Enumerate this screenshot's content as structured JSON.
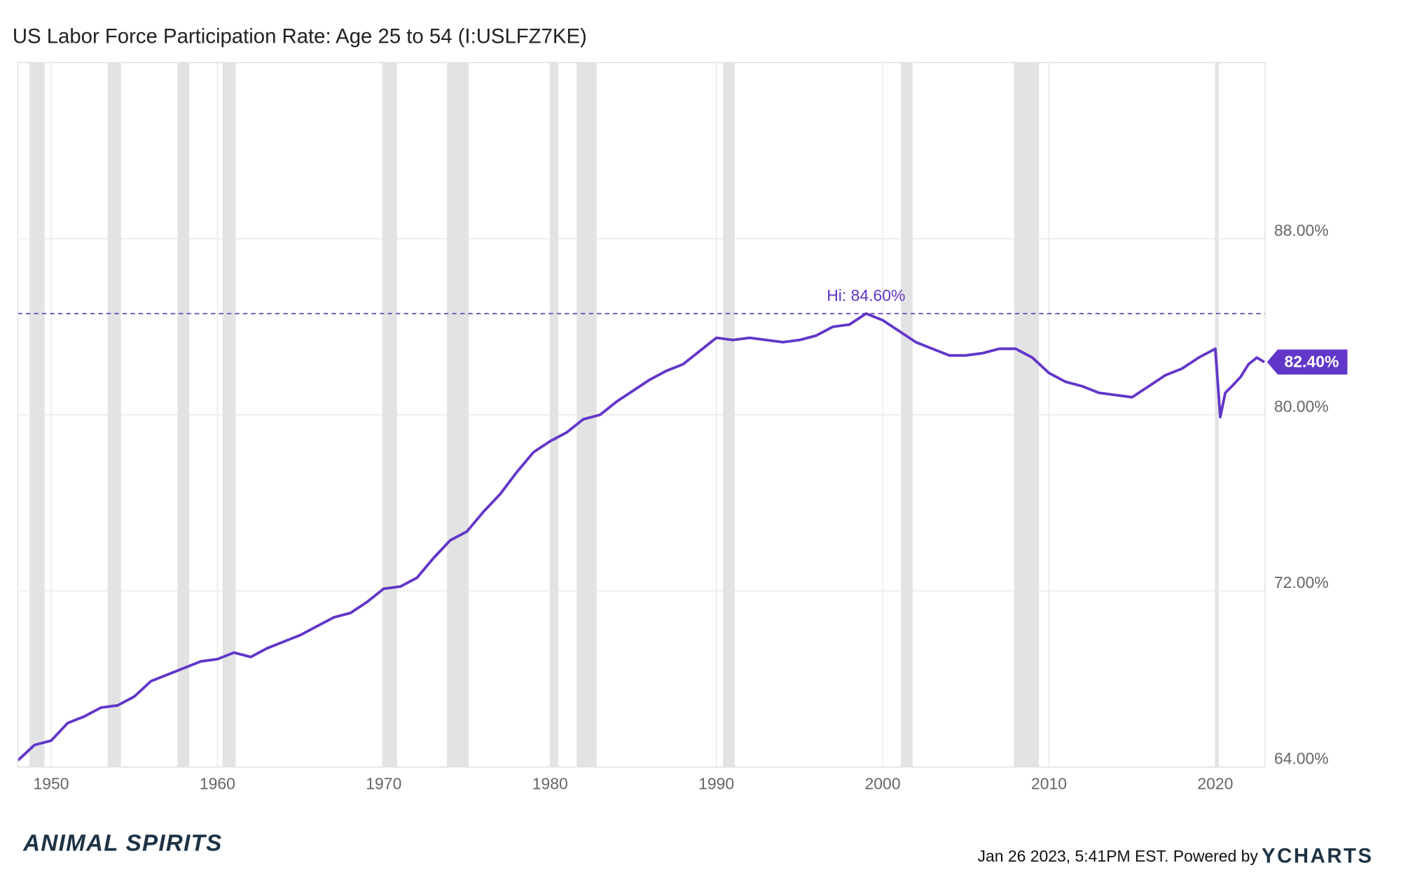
{
  "chart_data": {
    "type": "line",
    "title": "US Labor Force Participation Rate: Age 25 to 54 (I:USLFZ7KE)",
    "color": "#6236c9",
    "x": [
      1948,
      1949,
      1950,
      1951,
      1952,
      1953,
      1954,
      1955,
      1956,
      1957,
      1958,
      1959,
      1960,
      1961,
      1962,
      1963,
      1964,
      1965,
      1966,
      1967,
      1968,
      1969,
      1970,
      1971,
      1972,
      1973,
      1974,
      1975,
      1976,
      1977,
      1978,
      1979,
      1980,
      1981,
      1982,
      1983,
      1984,
      1985,
      1986,
      1987,
      1988,
      1989,
      1990,
      1991,
      1992,
      1993,
      1994,
      1995,
      1996,
      1997,
      1998,
      1999,
      2000,
      2001,
      2002,
      2003,
      2004,
      2005,
      2006,
      2007,
      2008,
      2009,
      2010,
      2011,
      2012,
      2013,
      2014,
      2015,
      2016,
      2017,
      2018,
      2019,
      2020,
      2020.3,
      2020.6,
      2021,
      2021.5,
      2022,
      2022.5,
      2022.95
    ],
    "values": [
      64.3,
      65.0,
      65.2,
      66.0,
      66.3,
      66.7,
      66.8,
      67.2,
      67.9,
      68.2,
      68.5,
      68.8,
      68.9,
      69.2,
      69.0,
      69.4,
      69.7,
      70.0,
      70.4,
      70.8,
      71.0,
      71.5,
      72.1,
      72.2,
      72.6,
      73.5,
      74.3,
      74.7,
      75.6,
      76.4,
      77.4,
      78.3,
      78.8,
      79.2,
      79.8,
      80.0,
      80.6,
      81.1,
      81.6,
      82.0,
      82.3,
      82.9,
      83.5,
      83.4,
      83.5,
      83.4,
      83.3,
      83.4,
      83.6,
      84.0,
      84.1,
      84.6,
      84.3,
      83.8,
      83.3,
      83.0,
      82.7,
      82.7,
      82.8,
      83.0,
      83.0,
      82.6,
      81.9,
      81.5,
      81.3,
      81.0,
      80.9,
      80.8,
      81.3,
      81.8,
      82.1,
      82.6,
      83.0,
      79.9,
      81.0,
      81.3,
      81.7,
      82.3,
      82.6,
      82.4
    ],
    "xlim": [
      1948,
      2023
    ],
    "xticks": [
      1950,
      1960,
      1970,
      1980,
      1990,
      2000,
      2010,
      2020
    ],
    "ylim": [
      64,
      96
    ],
    "yticks": [
      {
        "value": 64,
        "label": "64.00%"
      },
      {
        "value": 72,
        "label": "72.00%"
      },
      {
        "value": 80,
        "label": "80.00%"
      },
      {
        "value": 88,
        "label": "88.00%"
      }
    ],
    "grid": true,
    "recessions": [
      [
        1948.7,
        1949.6
      ],
      [
        1953.4,
        1954.2
      ],
      [
        1957.6,
        1958.3
      ],
      [
        1960.3,
        1961.1
      ],
      [
        1969.9,
        1970.8
      ],
      [
        1973.8,
        1975.1
      ],
      [
        1980.0,
        1980.5
      ],
      [
        1981.6,
        1982.8
      ],
      [
        1990.4,
        1991.1
      ],
      [
        2001.1,
        2001.8
      ],
      [
        2007.9,
        2009.4
      ],
      [
        2020.0,
        2020.2
      ]
    ],
    "high": {
      "value": 84.6,
      "label": "Hi: 84.60%"
    },
    "last": {
      "value": 82.4,
      "label": "82.40%"
    }
  },
  "footer": {
    "brand": "ANIMAL SPIRITS",
    "timestamp": "Jan 26 2023, 5:41PM EST. Powered by",
    "logo": "YCHARTS"
  }
}
